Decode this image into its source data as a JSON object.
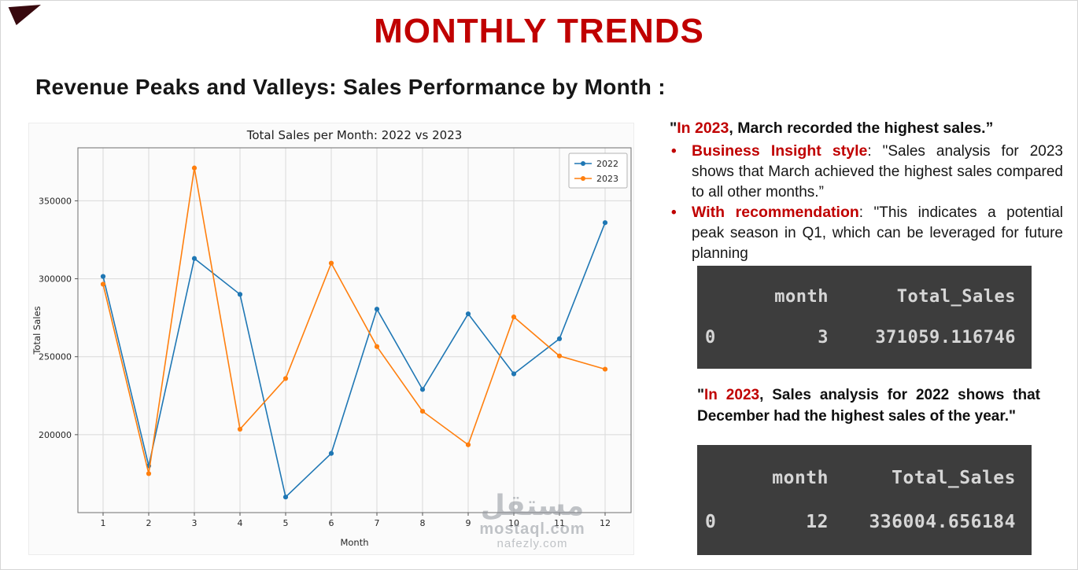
{
  "page": {
    "title": "MONTHLY TRENDS",
    "subtitle": "Revenue Peaks and Valleys: Sales Performance by Month :"
  },
  "chart_data": {
    "type": "line",
    "title": "Total Sales per Month: 2022 vs 2023",
    "xlabel": "Month",
    "ylabel": "Total Sales",
    "x": [
      1,
      2,
      3,
      4,
      5,
      6,
      7,
      8,
      9,
      10,
      11,
      12
    ],
    "series": [
      {
        "name": "2022",
        "color": "#1f77b4",
        "values": [
          301500,
          180000,
          313000,
          290000,
          160000,
          188000,
          280500,
          229000,
          277500,
          239000,
          261500,
          336004.656184
        ]
      },
      {
        "name": "2023",
        "color": "#ff7f0e",
        "values": [
          296500,
          175000,
          371059.116746,
          203500,
          236000,
          310000,
          256500,
          215000,
          193500,
          275500,
          250500,
          242000
        ]
      }
    ],
    "ylim": [
      150000,
      384000
    ],
    "yticks": [
      200000,
      250000,
      300000,
      350000
    ],
    "grid": true,
    "legend_position": "top-right"
  },
  "insight1": {
    "quote": "\"",
    "red": "In 2023",
    "rest": ", March recorded the highest sales.”",
    "bullets": [
      {
        "red": "Business Insight style",
        "rest": ": \"Sales analysis for 2023 shows that March achieved the highest sales compared to all other months.”"
      },
      {
        "red": " With recommendation",
        "rest": ": \"This indicates a potential peak season in Q1, which can be leveraged for future planning"
      }
    ]
  },
  "table_march": {
    "headers": [
      "month",
      "Total_Sales"
    ],
    "rows": [
      {
        "index": "0",
        "month": "3",
        "total_sales": "371059.116746"
      }
    ]
  },
  "insight2": {
    "quote": "\"",
    "red": "In 2023",
    "rest": ", Sales analysis for 2022 shows that December had the highest sales of the year.\""
  },
  "table_december": {
    "headers": [
      "month",
      "Total_Sales"
    ],
    "rows": [
      {
        "index": "0",
        "month": "12",
        "total_sales": "336004.656184"
      }
    ]
  },
  "watermark": {
    "arabic": "مستقل",
    "line1": "mostaql.com",
    "line2": "nafezly.com"
  },
  "colors": {
    "accent_red": "#c00000",
    "series_2022": "#1f77b4",
    "series_2023": "#ff7f0e",
    "table_bg": "#3d3d3d",
    "table_text": "#d6d6d6"
  }
}
